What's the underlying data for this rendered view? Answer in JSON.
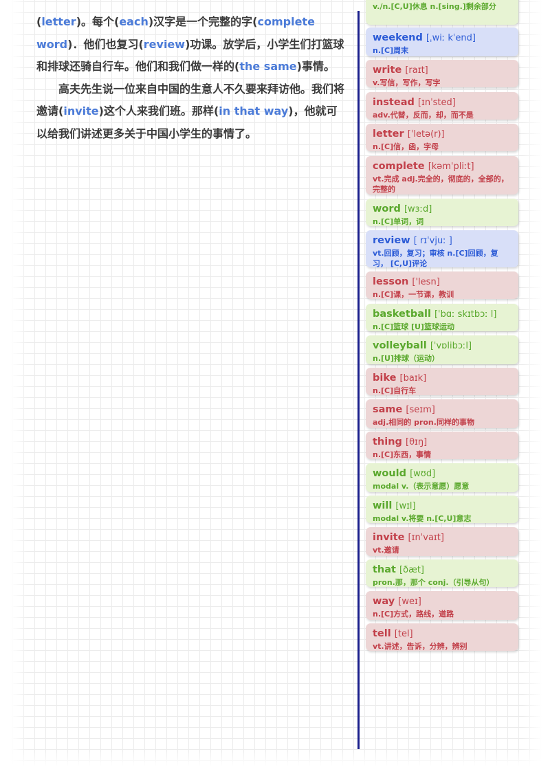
{
  "passage": {
    "p1": [
      {
        "t": "("
      },
      {
        "t": "letter",
        "k": true
      },
      {
        "t": ")。每个("
      },
      {
        "t": "each",
        "k": true
      },
      {
        "t": ")汉字是一个完整的字("
      },
      {
        "t": "complete word",
        "k": true
      },
      {
        "t": ")．他们也复习("
      },
      {
        "t": "review",
        "k": true
      },
      {
        "t": ")功课。放学后，小学生们打篮球和排球还骑自行车。他们和我们做一样的("
      },
      {
        "t": "the same",
        "k": true
      },
      {
        "t": ")事情。"
      }
    ],
    "p2": [
      {
        "t": "高夫先生说一位来自中国的生意人不久要来拜访他。我们将邀请("
      },
      {
        "t": "invite",
        "k": true
      },
      {
        "t": ")这个人来我们班。那样("
      },
      {
        "t": "in that way",
        "k": true
      },
      {
        "t": ")，他就可以给我们讲述更多关于中国小学生的事情了。"
      }
    ]
  },
  "vocab_cards": [
    {
      "word": "",
      "phonetic": "",
      "def": "v./n.[C,U]休息 n.[sing.]剩余部分",
      "color": "green"
    },
    {
      "word": "weekend",
      "phonetic": "[ˌwiː kˈend]",
      "def": "n.[C]周末",
      "color": "blue"
    },
    {
      "word": "write",
      "phonetic": "[raɪt]",
      "def": "v.写信，写作，写字",
      "color": "red"
    },
    {
      "word": "instead",
      "phonetic": "[ɪnˈsted]",
      "def": "adv.代替，反而，却，而不是",
      "color": "red"
    },
    {
      "word": "letter",
      "phonetic": "[ˈletə(r)]",
      "def": "n.[C]信，函，字母",
      "color": "red"
    },
    {
      "word": "complete",
      "phonetic": "[kəmˈpliːt]",
      "def": "vt.完成 adj.完全的，彻底的，全部的，完整的",
      "color": "red"
    },
    {
      "word": "word",
      "phonetic": "[wɜːd]",
      "def": "n.[C]单词，词",
      "color": "green"
    },
    {
      "word": "review",
      "phonetic": "[ rɪˈvjuː ]",
      "def": "vt.回顾，复习；审核 n.[C]回顾，复习， [C,U]评论",
      "color": "blue"
    },
    {
      "word": "lesson",
      "phonetic": "['lesn]",
      "def": "n.[C]课，一节课，教训",
      "color": "red"
    },
    {
      "word": "basketball",
      "phonetic": "[ˈbɑː skɪtbɔː l]",
      "def": "n.[C]篮球 [U]篮球运动",
      "color": "green"
    },
    {
      "word": "volleyball",
      "phonetic": "[ˈvɒlibɔːl]",
      "def": "n.[U]排球（运动）",
      "color": "green"
    },
    {
      "word": "bike",
      "phonetic": "[baɪk]",
      "def": "n.[C]自行车",
      "color": "red"
    },
    {
      "word": "same",
      "phonetic": "[seɪm]",
      "def": "adj.相同的 pron.同样的事物",
      "color": "red"
    },
    {
      "word": "thing",
      "phonetic": "[θɪŋ]",
      "def": "n.[C]东西，事情",
      "color": "red"
    },
    {
      "word": "would",
      "phonetic": "[wʊd]",
      "def": "modal v.（表示意愿）愿意",
      "color": "green"
    },
    {
      "word": "will",
      "phonetic": "[wɪl]",
      "def": "modal v.将要 n.[C,U]意志",
      "color": "green"
    },
    {
      "word": "invite",
      "phonetic": "[ɪnˈvaɪt]",
      "def": "vt.邀请",
      "color": "red"
    },
    {
      "word": "that",
      "phonetic": "[ðæt]",
      "def": "pron.那，那个 conj.（引导从句）",
      "color": "green"
    },
    {
      "word": "way",
      "phonetic": "[weɪ]",
      "def": "n.[C]方式，路线，道路",
      "color": "red"
    },
    {
      "word": "tell",
      "phonetic": "[tel]",
      "def": "vt.讲述，告诉，分辨，辨别",
      "color": "red"
    }
  ]
}
